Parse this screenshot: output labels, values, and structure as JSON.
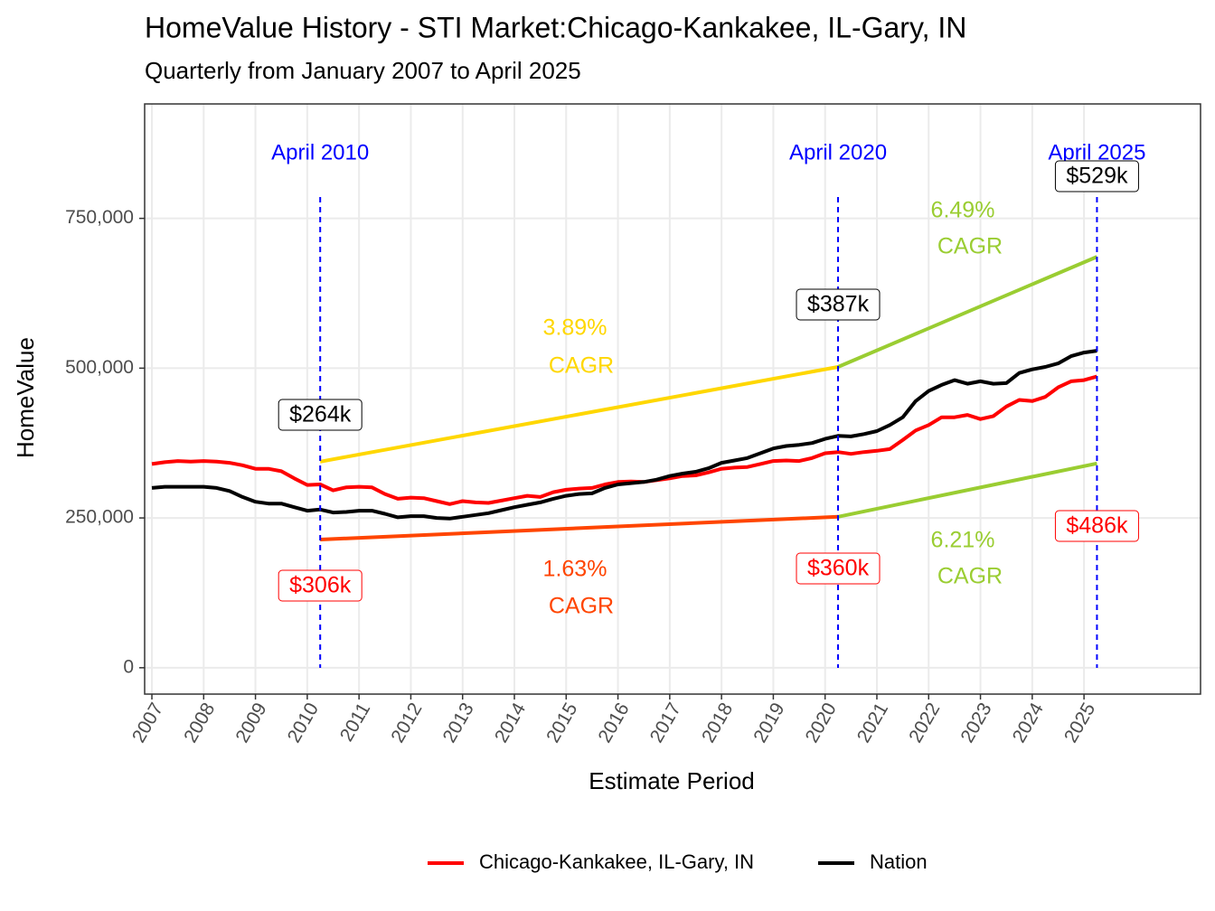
{
  "chart_data": {
    "type": "line",
    "title": "HomeValue History - STI Market:Chicago-Kankakee, IL-Gary, IN",
    "subtitle": "Quarterly from January 2007 to April 2025",
    "x_label": "Estimate Period",
    "y_label": "HomeValue",
    "x": [
      2007,
      2007.25,
      2007.5,
      2007.75,
      2008,
      2008.25,
      2008.5,
      2008.75,
      2009,
      2009.25,
      2009.5,
      2009.75,
      2010,
      2010.25,
      2010.5,
      2010.75,
      2011,
      2011.25,
      2011.5,
      2011.75,
      2012,
      2012.25,
      2012.5,
      2012.75,
      2013,
      2013.25,
      2013.5,
      2013.75,
      2014,
      2014.25,
      2014.5,
      2014.75,
      2015,
      2015.25,
      2015.5,
      2015.75,
      2016,
      2016.25,
      2016.5,
      2016.75,
      2017,
      2017.25,
      2017.5,
      2017.75,
      2018,
      2018.25,
      2018.5,
      2018.75,
      2019,
      2019.25,
      2019.5,
      2019.75,
      2020,
      2020.25,
      2020.5,
      2020.75,
      2021,
      2021.25,
      2021.5,
      2021.75,
      2022,
      2022.25,
      2022.5,
      2022.75,
      2023,
      2023.25,
      2023.5,
      2023.75,
      2024,
      2024.25,
      2024.5,
      2024.75,
      2025,
      2025.25
    ],
    "series": [
      {
        "name": "Chicago-Kankakee, IL-Gary, IN",
        "color": "#ff0000",
        "values": [
          340000,
          343000,
          345000,
          344000,
          345000,
          344000,
          342000,
          338000,
          332000,
          332000,
          328000,
          316000,
          305000,
          306000,
          296000,
          301000,
          302000,
          301000,
          290000,
          282000,
          284000,
          283000,
          278000,
          273000,
          278000,
          276000,
          275000,
          279000,
          283000,
          287000,
          285000,
          293000,
          297000,
          299000,
          300000,
          306000,
          310000,
          311000,
          310000,
          313000,
          316000,
          320000,
          321000,
          326000,
          332000,
          334000,
          335000,
          340000,
          345000,
          346000,
          345000,
          350000,
          358000,
          360000,
          357000,
          360000,
          362000,
          365000,
          380000,
          396000,
          405000,
          418000,
          418000,
          422000,
          415000,
          420000,
          436000,
          447000,
          445000,
          452000,
          468000,
          478000,
          480000,
          486000
        ]
      },
      {
        "name": "Nation",
        "color": "#000000",
        "values": [
          300000,
          302000,
          302000,
          302000,
          302000,
          300000,
          295000,
          285000,
          277000,
          274000,
          274000,
          268000,
          262000,
          264000,
          259000,
          260000,
          262000,
          262000,
          257000,
          251000,
          253000,
          253000,
          250000,
          249000,
          252000,
          255000,
          258000,
          263000,
          268000,
          272000,
          276000,
          282000,
          287000,
          290000,
          291000,
          300000,
          306000,
          308000,
          310000,
          314000,
          320000,
          324000,
          327000,
          333000,
          342000,
          346000,
          350000,
          358000,
          366000,
          370000,
          372000,
          375000,
          382000,
          387000,
          386000,
          390000,
          395000,
          405000,
          418000,
          445000,
          462000,
          472000,
          480000,
          474000,
          478000,
          474000,
          475000,
          492000,
          498000,
          502000,
          508000,
          520000,
          526000,
          529000
        ]
      }
    ],
    "trend_lines": [
      {
        "color": "#ffd700",
        "x": [
          2010.25,
          2020.25
        ],
        "values": [
          344000,
          502000
        ],
        "label": [
          "3.89%",
          "CAGR"
        ]
      },
      {
        "color": "#ff4500",
        "x": [
          2010.25,
          2020.25
        ],
        "values": [
          214000,
          252000
        ],
        "label": [
          "1.63%",
          "CAGR"
        ]
      },
      {
        "color": "#9acd32",
        "x": [
          2020.25,
          2025.25
        ],
        "values": [
          502000,
          686000
        ],
        "label": [
          "6.49%",
          "CAGR"
        ]
      },
      {
        "color": "#9acd32",
        "x": [
          2020.25,
          2025.25
        ],
        "values": [
          252000,
          341000
        ],
        "label": [
          "6.21%",
          "CAGR"
        ]
      }
    ],
    "markers": [
      {
        "x": 2010.25,
        "label": "April 2010"
      },
      {
        "x": 2020.25,
        "label": "April 2020"
      },
      {
        "x": 2025.25,
        "label": "April 2025"
      }
    ],
    "point_labels": [
      {
        "x": 2010.25,
        "value": 264000,
        "text": "$264k",
        "color": "#000000"
      },
      {
        "x": 2010.25,
        "value": 306000,
        "text": "$306k",
        "color": "#ff0000"
      },
      {
        "x": 2020.25,
        "value": 387000,
        "text": "$387k",
        "color": "#000000"
      },
      {
        "x": 2020.25,
        "value": 360000,
        "text": "$360k",
        "color": "#ff0000"
      },
      {
        "x": 2025.25,
        "value": 529000,
        "text": "$529k",
        "color": "#000000"
      },
      {
        "x": 2025.25,
        "value": 486000,
        "text": "$486k",
        "color": "#ff0000"
      }
    ],
    "xlim": [
      2006.86,
      2027.25
    ],
    "ylim": [
      -44000,
      941000
    ],
    "xticks": [
      2007,
      2008,
      2009,
      2010,
      2011,
      2012,
      2013,
      2014,
      2015,
      2016,
      2017,
      2018,
      2019,
      2020,
      2021,
      2022,
      2023,
      2024,
      2025
    ],
    "yticks": [
      0,
      {
        "value": 250000,
        "label": "250,000"
      },
      {
        "value": 500000,
        "label": "500,000"
      },
      {
        "value": 750000,
        "label": "750,000"
      }
    ],
    "grid": true,
    "legend": "bottom"
  }
}
